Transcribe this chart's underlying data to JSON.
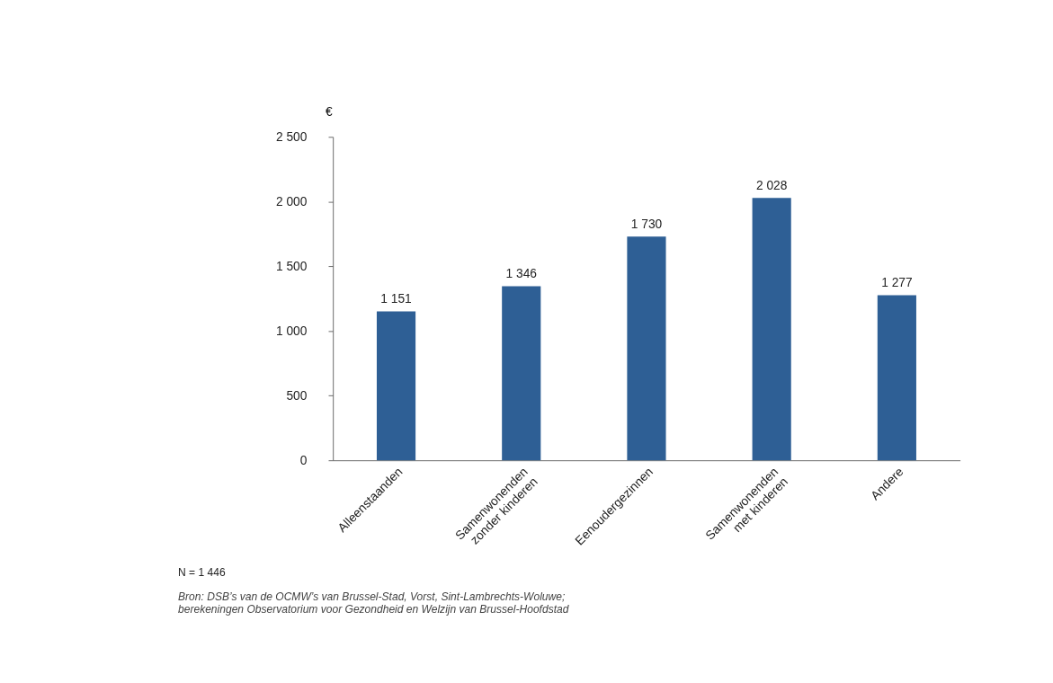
{
  "chart_data": {
    "type": "bar",
    "ylabel": "€",
    "categories": [
      "Alleenstaanden",
      "Samenwonenden\nzonder kinderen",
      "Eenoudergezinnen",
      "Samenwonenden\nmet kinderen",
      "Andere"
    ],
    "values": [
      1151,
      1346,
      1730,
      2028,
      1277
    ],
    "value_labels": [
      "1 151",
      "1 346",
      "1 730",
      "2 028",
      "1 277"
    ],
    "color": "#2e5f95",
    "ylim": [
      0,
      2500
    ],
    "yticks": [
      {
        "value": 0,
        "label": "0"
      },
      {
        "value": 500,
        "label": "500"
      },
      {
        "value": 1000,
        "label": "1 000"
      },
      {
        "value": 1500,
        "label": "1 500"
      },
      {
        "value": 2000,
        "label": "2 000"
      },
      {
        "value": 2500,
        "label": "2 500"
      }
    ],
    "grid": false,
    "annotations": [
      "N = 1 446",
      "Bron: DSB’s van de OCMW’s van Brussel-Stad, Vorst, Sint-Lambrechts-Woluwe;\n        berekeningen Observatorium voor Gezondheid en Welzijn van Brussel-Hoofdstad"
    ]
  }
}
